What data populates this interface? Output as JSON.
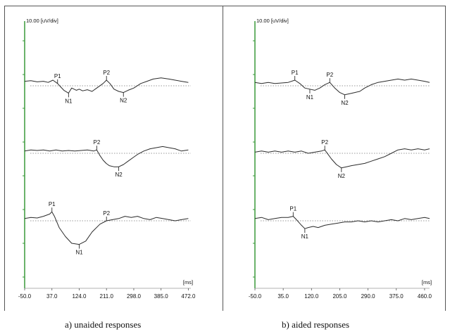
{
  "colors": {
    "axis": "#3a9a3a",
    "trace": "#2b2b2b",
    "baseline": "#777777",
    "frame": "#555555"
  },
  "chart_data": [
    {
      "type": "line",
      "panel": "a",
      "caption": "a) unaided responses",
      "scale_label": "10.00 [uV/div]",
      "unit_label": "[ms]",
      "x_ticks": [
        "-50.0",
        "37.0",
        "124.0",
        "211.0",
        "298.0",
        "385.0",
        "472.0"
      ],
      "xlim": [
        -50,
        480
      ],
      "y_units": "uV",
      "traces": [
        {
          "baseline_y": 0,
          "x": [
            -50,
            -30,
            -10,
            10,
            25,
            40,
            55,
            65,
            75,
            90,
            100,
            115,
            124,
            135,
            150,
            165,
            180,
            200,
            211,
            222,
            235,
            250,
            265,
            280,
            298,
            320,
            340,
            360,
            385,
            410,
            430,
            450,
            472
          ],
          "y": [
            4,
            4.5,
            3.5,
            4,
            3,
            5,
            2,
            -1,
            -4,
            -6.5,
            -2,
            -4,
            -3,
            -4.5,
            -3.5,
            -5,
            -2,
            2,
            5,
            2,
            -3,
            -5,
            -6,
            -4,
            -2,
            2,
            4,
            6,
            7,
            6,
            5,
            4,
            3
          ],
          "peaks": [
            {
              "label": "P1",
              "x": 55,
              "y": 2,
              "dir": "up"
            },
            {
              "label": "N1",
              "x": 90,
              "y": -6.5,
              "dir": "down"
            },
            {
              "label": "P2",
              "x": 211,
              "y": 5,
              "dir": "up"
            },
            {
              "label": "N2",
              "x": 265,
              "y": -6,
              "dir": "down"
            }
          ]
        },
        {
          "baseline_y": 0,
          "x": [
            -50,
            -30,
            -10,
            10,
            30,
            50,
            70,
            90,
            110,
            130,
            150,
            170,
            180,
            190,
            200,
            210,
            220,
            235,
            250,
            265,
            280,
            295,
            310,
            330,
            350,
            370,
            390,
            410,
            430,
            450,
            472
          ],
          "y": [
            2,
            3,
            2.5,
            3,
            2,
            3,
            2,
            2.5,
            2,
            2.5,
            3,
            2,
            3,
            -2,
            -6,
            -9,
            -11,
            -12,
            -12,
            -10,
            -7,
            -4,
            -1,
            2,
            4,
            5,
            6,
            5,
            4,
            2,
            3
          ],
          "peaks": [
            {
              "label": "P2",
              "x": 180,
              "y": 3,
              "dir": "up"
            },
            {
              "label": "N2",
              "x": 250,
              "y": -12,
              "dir": "down"
            }
          ]
        },
        {
          "baseline_y": 0,
          "x": [
            -50,
            -30,
            -10,
            10,
            30,
            37,
            45,
            60,
            80,
            100,
            124,
            145,
            165,
            190,
            211,
            230,
            250,
            270,
            290,
            310,
            330,
            350,
            370,
            390,
            410,
            430,
            450,
            472
          ],
          "y": [
            2,
            3,
            2.5,
            4,
            6,
            8,
            4,
            -6,
            -14,
            -20,
            -21,
            -18,
            -10,
            -3,
            0,
            1,
            2,
            4,
            3,
            4,
            2,
            1,
            3,
            2,
            1,
            0,
            1,
            2
          ],
          "peaks": [
            {
              "label": "P1",
              "x": 37,
              "y": 8,
              "dir": "up"
            },
            {
              "label": "N1",
              "x": 124,
              "y": -21,
              "dir": "down"
            },
            {
              "label": "P2",
              "x": 211,
              "y": 0,
              "dir": "up"
            }
          ]
        }
      ]
    },
    {
      "type": "line",
      "panel": "b",
      "caption": "b) aided responses",
      "scale_label": "10.00 [uV/div]",
      "unit_label": "[ms]",
      "x_ticks": [
        "-50.0",
        "35.0",
        "120.0",
        "205.0",
        "290.0",
        "375.0",
        "460.0"
      ],
      "xlim": [
        -50,
        475
      ],
      "y_units": "uV",
      "traces": [
        {
          "baseline_y": 0,
          "x": [
            -50,
            -30,
            -10,
            10,
            30,
            50,
            70,
            85,
            100,
            115,
            130,
            145,
            160,
            175,
            190,
            205,
            220,
            235,
            250,
            265,
            280,
            300,
            320,
            340,
            360,
            380,
            400,
            420,
            440,
            460,
            475
          ],
          "y": [
            3,
            2,
            3,
            2,
            2.5,
            3,
            5,
            2,
            -2,
            -3,
            -4,
            -2,
            1,
            3,
            -2,
            -6,
            -8,
            -7,
            -6,
            -5,
            -2,
            1,
            3,
            4,
            5,
            6,
            5,
            6,
            5,
            4,
            3
          ],
          "peaks": [
            {
              "label": "P1",
              "x": 70,
              "y": 5,
              "dir": "up"
            },
            {
              "label": "N1",
              "x": 115,
              "y": -3,
              "dir": "down"
            },
            {
              "label": "P2",
              "x": 175,
              "y": 3,
              "dir": "up"
            },
            {
              "label": "N2",
              "x": 220,
              "y": -8,
              "dir": "down"
            }
          ]
        },
        {
          "baseline_y": 0,
          "x": [
            -50,
            -30,
            -10,
            10,
            30,
            50,
            70,
            90,
            110,
            130,
            150,
            160,
            170,
            180,
            195,
            210,
            225,
            240,
            260,
            280,
            300,
            320,
            340,
            360,
            380,
            400,
            420,
            440,
            460,
            475
          ],
          "y": [
            1,
            2,
            1,
            2,
            1,
            2,
            1,
            2,
            0,
            1,
            2,
            3,
            -1,
            -5,
            -10,
            -13,
            -12,
            -11,
            -10,
            -9,
            -7,
            -5,
            -3,
            0,
            3,
            4,
            3,
            4,
            3,
            4
          ],
          "peaks": [
            {
              "label": "P2",
              "x": 160,
              "y": 3,
              "dir": "up"
            },
            {
              "label": "N2",
              "x": 210,
              "y": -13,
              "dir": "down"
            }
          ]
        },
        {
          "baseline_y": 0,
          "x": [
            -50,
            -30,
            -10,
            10,
            30,
            50,
            65,
            75,
            90,
            100,
            110,
            125,
            140,
            160,
            180,
            200,
            220,
            240,
            260,
            280,
            300,
            320,
            340,
            360,
            380,
            400,
            420,
            440,
            460,
            475
          ],
          "y": [
            2,
            3,
            1,
            2,
            3,
            3,
            4,
            1,
            -4,
            -7,
            -6,
            -5,
            -6,
            -4,
            -3,
            -2,
            -1,
            -1,
            0,
            -1,
            0,
            -1,
            0,
            1,
            0,
            2,
            1,
            2,
            3,
            2
          ],
          "peaks": [
            {
              "label": "P1",
              "x": 65,
              "y": 4,
              "dir": "up"
            },
            {
              "label": "N1",
              "x": 100,
              "y": -7,
              "dir": "down"
            }
          ]
        }
      ]
    }
  ]
}
